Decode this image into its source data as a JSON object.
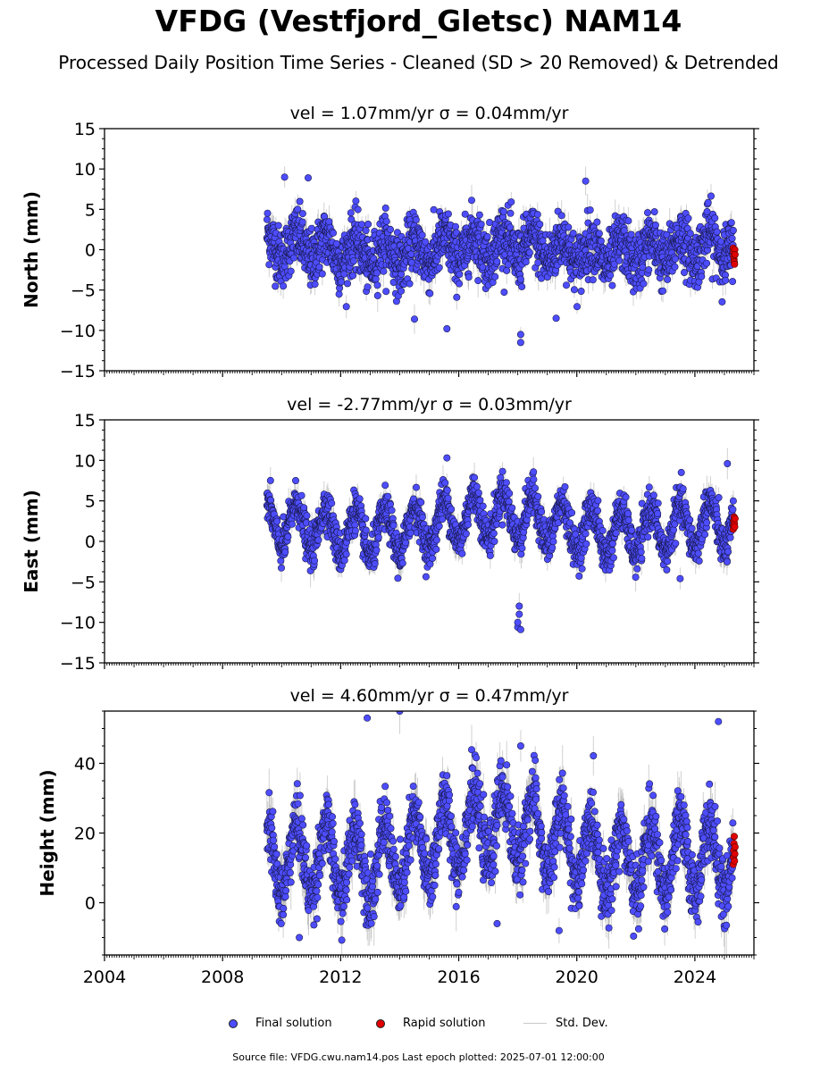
{
  "title": "VFDG (Vestfjord_Gletsc) NAM14",
  "subtitle": "Processed Daily Position Time Series - Cleaned (SD > 20 Removed) & Detrended",
  "legend": {
    "final": "Final solution",
    "rapid": "Rapid solution",
    "std": "Std. Dev."
  },
  "footer": "Source file: VFDG.cwu.nam14.pos  Last epoch plotted: 2025-07-01 12:00:00",
  "colors": {
    "final": "#4d4dff",
    "rapid": "#e00000",
    "std": "#b0b0b0"
  },
  "chart_data": [
    {
      "type": "scatter",
      "title": "vel = 1.07mm/yr   σ = 0.04mm/yr",
      "ylabel": "North (mm)",
      "xlim": [
        2004,
        2026
      ],
      "ylim": [
        -15,
        15
      ],
      "yticks": [
        -15,
        -10,
        -5,
        0,
        5,
        10,
        15
      ],
      "xticks": [
        2004,
        2008,
        2012,
        2016,
        2020,
        2024
      ],
      "series": [
        {
          "name": "Final solution",
          "x_range": [
            2009.5,
            2025.3
          ],
          "amplitude": 1.5,
          "trend_start": 0.0,
          "trend_end": 0.0,
          "noise": 1.8,
          "std": 1.5,
          "outliers": [
            [
              2018.1,
              -11.5
            ],
            [
              2018.1,
              -10.5
            ],
            [
              2015.6,
              -9.8
            ],
            [
              2014.5,
              -8.6
            ],
            [
              2019.3,
              -8.5
            ],
            [
              2010.1,
              9.0
            ],
            [
              2010.9,
              8.9
            ],
            [
              2020.3,
              8.5
            ]
          ]
        },
        {
          "name": "Rapid solution",
          "x_range": [
            2025.3,
            2025.5
          ],
          "values": [
            0.2,
            -0.3,
            -0.8,
            -1.2,
            -1.5,
            -1.8,
            0.0,
            -0.6
          ]
        }
      ]
    },
    {
      "type": "scatter",
      "title": "vel = -2.77mm/yr   σ = 0.03mm/yr",
      "ylabel": "East (mm)",
      "xlim": [
        2004,
        2026
      ],
      "ylim": [
        -15,
        15
      ],
      "yticks": [
        -15,
        -10,
        -5,
        0,
        5,
        10,
        15
      ],
      "xticks": [
        2004,
        2008,
        2012,
        2016,
        2020,
        2024
      ],
      "series": [
        {
          "name": "Final solution",
          "x_range": [
            2009.5,
            2025.3
          ],
          "amplitude": 2.8,
          "trend_start": 1.0,
          "trend_end": 2.5,
          "noise": 1.2,
          "std": 1.5,
          "outliers": [
            [
              2018.0,
              -10.6
            ],
            [
              2018.0,
              -10.0
            ],
            [
              2018.05,
              -9.0
            ],
            [
              2018.05,
              -8.0
            ],
            [
              2018.1,
              -10.9
            ],
            [
              2023.5,
              -4.6
            ],
            [
              2015.6,
              10.3
            ],
            [
              2025.1,
              9.6
            ]
          ]
        },
        {
          "name": "Rapid solution",
          "x_range": [
            2025.3,
            2025.5
          ],
          "values": [
            1.5,
            2.0,
            2.5,
            3.0,
            2.2,
            1.8,
            2.8
          ]
        }
      ]
    },
    {
      "type": "scatter",
      "title": "vel = 4.60mm/yr   σ = 0.47mm/yr",
      "ylabel": "Height (mm)",
      "xlim": [
        2004,
        2026
      ],
      "ylim": [
        -15,
        55
      ],
      "yticks": [
        0,
        20,
        40
      ],
      "xticks": [
        2004,
        2008,
        2012,
        2016,
        2020,
        2024
      ],
      "xtick_labels": [
        "2004",
        "2008",
        "2012",
        "2016",
        "2020",
        "2024"
      ],
      "series": [
        {
          "name": "Final solution",
          "x_range": [
            2009.5,
            2025.3
          ],
          "amplitude": 10,
          "trend_start": 8,
          "trend_end": 20,
          "noise": 4.5,
          "std": 6,
          "outliers": [
            [
              2012.9,
              53
            ],
            [
              2014.0,
              55
            ],
            [
              2024.8,
              52
            ],
            [
              2018.1,
              45
            ],
            [
              2010.6,
              -10
            ],
            [
              2019.4,
              -8
            ],
            [
              2017.3,
              -6
            ]
          ]
        },
        {
          "name": "Rapid solution",
          "x_range": [
            2025.3,
            2025.5
          ],
          "values": [
            11,
            13,
            15,
            17,
            19,
            12,
            14,
            16
          ]
        }
      ]
    }
  ]
}
